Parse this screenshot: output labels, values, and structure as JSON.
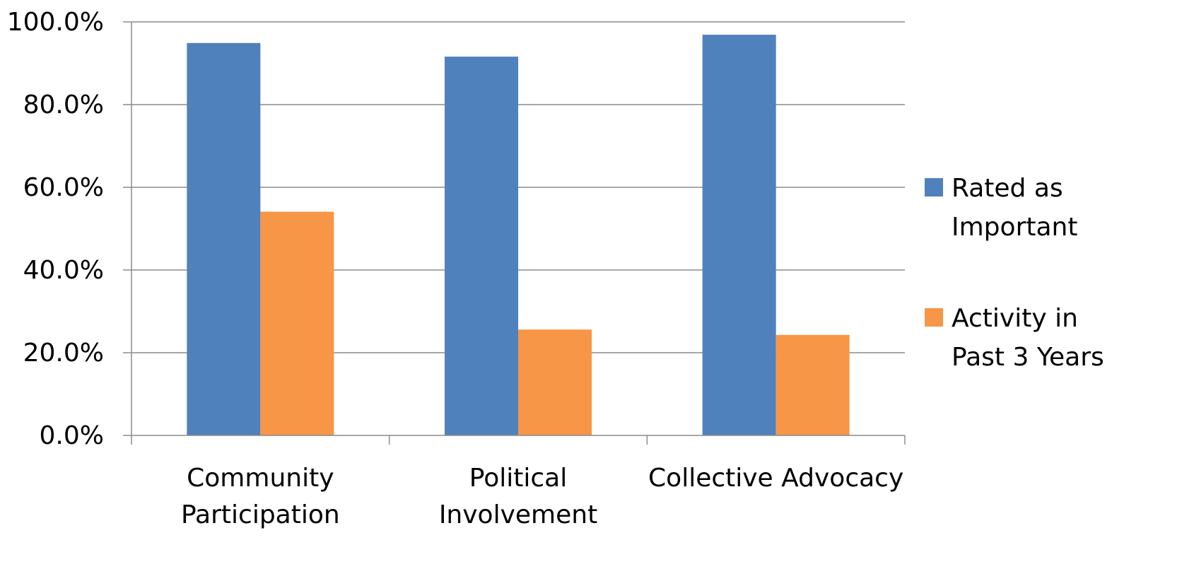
{
  "chart_data": {
    "type": "bar",
    "title": "",
    "xlabel": "",
    "ylabel": "",
    "categories": [
      [
        "Community",
        "Participation"
      ],
      [
        "Political",
        "Involvement"
      ],
      [
        "Collective Advocacy"
      ]
    ],
    "series": [
      {
        "name": [
          "Rated as",
          "Important"
        ],
        "color": "#4F81BD",
        "values": [
          94.9,
          91.6,
          96.9
        ]
      },
      {
        "name": [
          "Activity in",
          "Past 3 Years"
        ],
        "color": "#F79646",
        "values": [
          54.1,
          25.6,
          24.3
        ]
      }
    ],
    "ylim": [
      0,
      100
    ],
    "yticks": [
      "0.0%",
      "20.0%",
      "40.0%",
      "60.0%",
      "80.0%",
      "100.0%"
    ],
    "grid": true,
    "legend_position": "right"
  }
}
